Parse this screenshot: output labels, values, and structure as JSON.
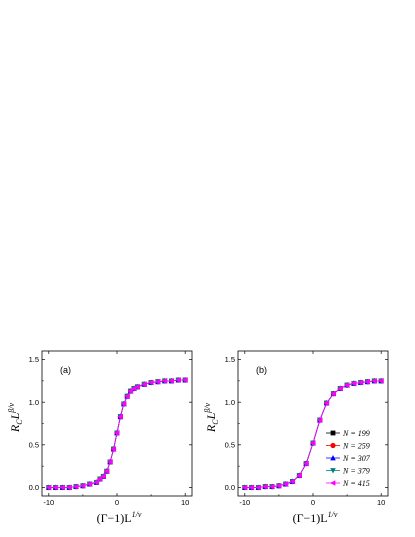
{
  "chart_data": [
    {
      "type": "scatter",
      "panel_label": "(a)",
      "xlabel": "(Γ−1)L",
      "xlabel_sup": "1/ν",
      "ylabel": "R",
      "ylabel_sub": "C",
      "ylabel_mid": "L",
      "ylabel_sup": "β/ν",
      "xlim": [
        -11,
        11
      ],
      "ylim": [
        -0.1,
        1.6
      ],
      "xticks": [
        "-10",
        "0",
        "10"
      ],
      "yticks": [
        "0.0",
        "0.5",
        "1.0",
        "1.5"
      ],
      "xtick_values": [
        -10,
        0,
        10
      ],
      "ytick_values": [
        0.0,
        0.5,
        1.0,
        1.5
      ],
      "grid": false,
      "legend": null,
      "curve": {
        "x0": 0.0,
        "width": 1.2,
        "ymax": 1.28
      },
      "series": [
        {
          "name": "N = 199",
          "x": [
            -10,
            -9,
            -8,
            -7,
            -6,
            -5,
            -4,
            -3,
            -2.5,
            -2,
            -1.5,
            -1,
            -0.5,
            0,
            0.5,
            1,
            1.5,
            2,
            2.5,
            3,
            4,
            5,
            6,
            7,
            8,
            9,
            10
          ],
          "y": [
            0.0,
            0.0,
            0.0,
            0.0,
            0.01,
            0.02,
            0.04,
            0.06,
            0.1,
            0.13,
            0.19,
            0.3,
            0.45,
            0.64,
            0.83,
            0.98,
            1.07,
            1.13,
            1.16,
            1.18,
            1.21,
            1.23,
            1.24,
            1.25,
            1.25,
            1.26,
            1.26
          ]
        },
        {
          "name": "N = 259",
          "x": [
            -10,
            -9,
            -8,
            -7,
            -6,
            -5,
            -4,
            -3,
            -2.5,
            -2,
            -1.5,
            -1,
            -0.5,
            0,
            0.5,
            1,
            1.5,
            2,
            2.5,
            3,
            4,
            5,
            6,
            7,
            8,
            9,
            10
          ],
          "y": [
            0.0,
            0.0,
            0.0,
            0.0,
            0.01,
            0.02,
            0.04,
            0.06,
            0.1,
            0.13,
            0.19,
            0.3,
            0.45,
            0.64,
            0.83,
            0.98,
            1.07,
            1.13,
            1.16,
            1.18,
            1.21,
            1.23,
            1.24,
            1.25,
            1.25,
            1.26,
            1.26
          ]
        },
        {
          "name": "N = 307",
          "x": [
            -10,
            -9,
            -8,
            -7,
            -6,
            -5,
            -4,
            -3,
            -2.5,
            -2,
            -1.5,
            -1,
            -0.5,
            0,
            0.5,
            1,
            1.5,
            2,
            2.5,
            3,
            4,
            5,
            6,
            7,
            8,
            9,
            10
          ],
          "y": [
            0.0,
            0.0,
            0.0,
            0.0,
            0.01,
            0.02,
            0.04,
            0.06,
            0.1,
            0.13,
            0.19,
            0.3,
            0.45,
            0.64,
            0.83,
            0.98,
            1.07,
            1.13,
            1.16,
            1.18,
            1.21,
            1.23,
            1.24,
            1.25,
            1.25,
            1.26,
            1.26
          ]
        },
        {
          "name": "N = 379",
          "x": [
            -10,
            -9,
            -8,
            -7,
            -6,
            -5,
            -4,
            -3,
            -2.5,
            -2,
            -1.5,
            -1,
            -0.5,
            0,
            0.5,
            1,
            1.5,
            2,
            2.5,
            3,
            4,
            5,
            6,
            7,
            8,
            9,
            10
          ],
          "y": [
            0.0,
            0.0,
            0.0,
            0.0,
            0.01,
            0.02,
            0.04,
            0.06,
            0.1,
            0.13,
            0.19,
            0.3,
            0.45,
            0.64,
            0.83,
            0.98,
            1.07,
            1.13,
            1.16,
            1.18,
            1.21,
            1.23,
            1.24,
            1.25,
            1.25,
            1.26,
            1.26
          ]
        },
        {
          "name": "N = 415",
          "x": [
            -10,
            -9,
            -8,
            -7,
            -6,
            -5,
            -4,
            -3,
            -2.5,
            -2,
            -1.5,
            -1,
            -0.5,
            0,
            0.5,
            1,
            1.5,
            2,
            2.5,
            3,
            4,
            5,
            6,
            7,
            8,
            9,
            10
          ],
          "y": [
            0.0,
            0.0,
            0.0,
            0.0,
            0.01,
            0.02,
            0.04,
            0.06,
            0.1,
            0.13,
            0.19,
            0.3,
            0.45,
            0.64,
            0.83,
            0.98,
            1.07,
            1.13,
            1.16,
            1.18,
            1.21,
            1.23,
            1.24,
            1.25,
            1.25,
            1.26,
            1.26
          ]
        }
      ]
    },
    {
      "type": "scatter",
      "panel_label": "(b)",
      "xlabel": "(Γ−1)L",
      "xlabel_sup": "1/ν",
      "ylabel": "R",
      "ylabel_sub": "C",
      "ylabel_mid": "L",
      "ylabel_sup": "β/ν",
      "xlim": [
        -11,
        11
      ],
      "ylim": [
        -0.1,
        1.6
      ],
      "xticks": [
        "-10",
        "0",
        "10"
      ],
      "yticks": [
        "0.0",
        "0.5",
        "1.0",
        "1.5"
      ],
      "xtick_values": [
        -10,
        0,
        10
      ],
      "ytick_values": [
        0.0,
        0.5,
        1.0,
        1.5
      ],
      "grid": false,
      "legend": "bottom-right",
      "series": [
        {
          "name": "N = 199",
          "x": [
            -10,
            -9,
            -8,
            -7,
            -6,
            -5,
            -4,
            -3,
            -2,
            -1,
            0,
            1,
            2,
            3,
            4,
            5,
            6,
            7,
            8,
            9,
            10
          ],
          "y": [
            0.0,
            0.0,
            0.0,
            0.01,
            0.01,
            0.02,
            0.04,
            0.07,
            0.14,
            0.28,
            0.52,
            0.79,
            0.99,
            1.1,
            1.16,
            1.2,
            1.22,
            1.23,
            1.24,
            1.25,
            1.25
          ]
        },
        {
          "name": "N = 259",
          "x": [
            -10,
            -9,
            -8,
            -7,
            -6,
            -5,
            -4,
            -3,
            -2,
            -1,
            0,
            1,
            2,
            3,
            4,
            5,
            6,
            7,
            8,
            9,
            10
          ],
          "y": [
            0.0,
            0.0,
            0.0,
            0.01,
            0.01,
            0.02,
            0.04,
            0.07,
            0.14,
            0.28,
            0.52,
            0.79,
            0.99,
            1.1,
            1.16,
            1.2,
            1.22,
            1.23,
            1.24,
            1.25,
            1.25
          ]
        },
        {
          "name": "N = 307",
          "x": [
            -10,
            -9,
            -8,
            -7,
            -6,
            -5,
            -4,
            -3,
            -2,
            -1,
            0,
            1,
            2,
            3,
            4,
            5,
            6,
            7,
            8,
            9,
            10
          ],
          "y": [
            0.0,
            0.0,
            0.0,
            0.01,
            0.01,
            0.02,
            0.04,
            0.07,
            0.14,
            0.28,
            0.52,
            0.79,
            0.99,
            1.1,
            1.16,
            1.2,
            1.22,
            1.23,
            1.24,
            1.25,
            1.25
          ]
        },
        {
          "name": "N = 379",
          "x": [
            -10,
            -9,
            -8,
            -7,
            -6,
            -5,
            -4,
            -3,
            -2,
            -1,
            0,
            1,
            2,
            3,
            4,
            5,
            6,
            7,
            8,
            9,
            10
          ],
          "y": [
            0.0,
            0.0,
            0.0,
            0.01,
            0.01,
            0.02,
            0.04,
            0.07,
            0.14,
            0.28,
            0.52,
            0.79,
            0.99,
            1.1,
            1.16,
            1.2,
            1.22,
            1.23,
            1.24,
            1.25,
            1.25
          ]
        },
        {
          "name": "N = 415",
          "x": [
            -10,
            -9,
            -8,
            -7,
            -6,
            -5,
            -4,
            -3,
            -2,
            -1,
            0,
            1,
            2,
            3,
            4,
            5,
            6,
            7,
            8,
            9,
            10
          ],
          "y": [
            0.0,
            0.0,
            0.0,
            0.01,
            0.01,
            0.02,
            0.04,
            0.07,
            0.14,
            0.28,
            0.52,
            0.79,
            0.99,
            1.1,
            1.16,
            1.2,
            1.22,
            1.23,
            1.24,
            1.25,
            1.25
          ]
        }
      ]
    }
  ],
  "series_style": [
    {
      "color": "#000000",
      "marker": "square"
    },
    {
      "color": "#ff0000",
      "marker": "circle"
    },
    {
      "color": "#0000ff",
      "marker": "triangle-up"
    },
    {
      "color": "#008080",
      "marker": "triangle-down"
    },
    {
      "color": "#ff00ff",
      "marker": "triangle-left"
    }
  ]
}
